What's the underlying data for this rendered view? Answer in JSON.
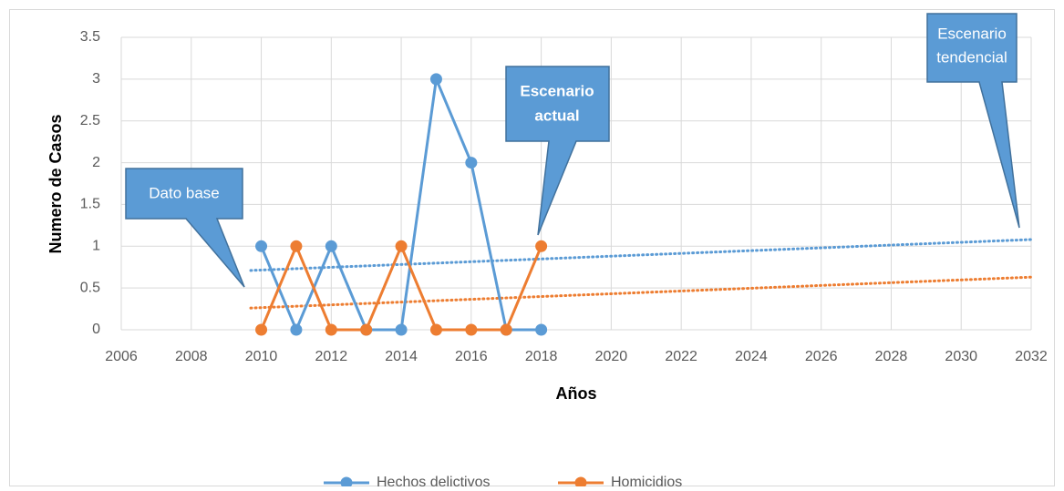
{
  "chart_data": {
    "type": "line",
    "x_label": "Años",
    "y_label": "Numero de Casos",
    "x": [
      2010,
      2011,
      2012,
      2013,
      2014,
      2015,
      2016,
      2017,
      2018
    ],
    "series": [
      {
        "name": "Hechos delictivos",
        "color": "#5b9bd5",
        "values": [
          1,
          0,
          1,
          0,
          0,
          3,
          2,
          0,
          0
        ]
      },
      {
        "name": "Homicidios",
        "color": "#ed7d31",
        "values": [
          0,
          1,
          0,
          0,
          1,
          0,
          0,
          0,
          1
        ]
      }
    ],
    "trendlines": [
      {
        "color": "#5b9bd5",
        "x": [
          2009.7,
          2032
        ],
        "values": [
          0.71,
          1.08
        ]
      },
      {
        "color": "#ed7d31",
        "x": [
          2009.7,
          2032
        ],
        "values": [
          0.26,
          0.63
        ]
      }
    ],
    "annotations": [
      {
        "lines": [
          "Dato base"
        ]
      },
      {
        "lines": [
          "Escenario",
          "actual"
        ]
      },
      {
        "lines": [
          "Escenario",
          "tendencial"
        ]
      }
    ],
    "xlim": [
      2006,
      2032
    ],
    "xticks": [
      2006,
      2008,
      2010,
      2012,
      2014,
      2016,
      2018,
      2020,
      2022,
      2024,
      2026,
      2028,
      2030,
      2032
    ],
    "ylim": [
      0,
      3.5
    ],
    "yticks": [
      0,
      0.5,
      1,
      1.5,
      2,
      2.5,
      3,
      3.5
    ],
    "grid": true,
    "legend": "bottom"
  }
}
